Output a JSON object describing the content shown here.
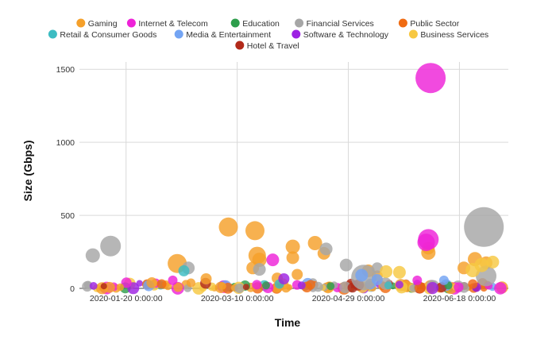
{
  "chart_data": {
    "type": "scatter",
    "xlabel": "Time",
    "ylabel": "Size (Gbps)",
    "ylim": [
      0,
      1550
    ],
    "y_ticks": [
      0,
      500,
      1000,
      1500
    ],
    "xlim": [
      "2019-12-30",
      "2020-07-10"
    ],
    "x_ticks": [
      "2020-01-20",
      "2020-03-10",
      "2020-04-29",
      "2020-06-18"
    ],
    "x_tick_labels": [
      "2020-01-20 0:00:00",
      "2020-03-10 0:00:00",
      "2020-04-29 0:00:00",
      "2020-06-18 0:00:00"
    ],
    "grid": true,
    "legend_position": "top",
    "series": [
      {
        "name": "Gaming",
        "color": "#f5a02a",
        "points": [
          {
            "x": "2020-02-12",
            "y": 170,
            "r": 12
          },
          {
            "x": "2020-03-06",
            "y": 420,
            "r": 12
          },
          {
            "x": "2020-03-18",
            "y": 395,
            "r": 12
          },
          {
            "x": "2020-03-19",
            "y": 225,
            "r": 11
          },
          {
            "x": "2020-03-20",
            "y": 195,
            "r": 9
          },
          {
            "x": "2020-03-17",
            "y": 140,
            "r": 8
          },
          {
            "x": "2020-04-04",
            "y": 285,
            "r": 9
          },
          {
            "x": "2020-04-04",
            "y": 210,
            "r": 8
          },
          {
            "x": "2020-04-06",
            "y": 95,
            "r": 7
          },
          {
            "x": "2020-04-14",
            "y": 310,
            "r": 9
          },
          {
            "x": "2020-04-18",
            "y": 240,
            "r": 8
          },
          {
            "x": "2020-05-08",
            "y": 120,
            "r": 8
          },
          {
            "x": "2020-05-12",
            "y": 85,
            "r": 7
          },
          {
            "x": "2020-06-04",
            "y": 245,
            "r": 9
          },
          {
            "x": "2020-06-04",
            "y": 275,
            "r": 8
          },
          {
            "x": "2020-06-20",
            "y": 140,
            "r": 8
          },
          {
            "x": "2020-06-25",
            "y": 200,
            "r": 9
          },
          {
            "x": "2020-06-30",
            "y": 175,
            "r": 8
          },
          {
            "x": "2020-02-25",
            "y": 65,
            "r": 7
          },
          {
            "x": "2020-03-28",
            "y": 70,
            "r": 7
          }
        ]
      },
      {
        "name": "Internet & Telecom",
        "color": "#ee22d8",
        "points": [
          {
            "x": "2020-06-05",
            "y": 1440,
            "r": 19
          },
          {
            "x": "2020-06-04",
            "y": 335,
            "r": 13
          },
          {
            "x": "2020-06-03",
            "y": 315,
            "r": 11
          },
          {
            "x": "2020-03-26",
            "y": 195,
            "r": 8
          },
          {
            "x": "2020-02-10",
            "y": 55,
            "r": 6
          },
          {
            "x": "2020-05-30",
            "y": 55,
            "r": 6
          }
        ]
      },
      {
        "name": "Education",
        "color": "#2e9e4c",
        "points": [
          {
            "x": "2020-03-23",
            "y": 20,
            "r": 5
          },
          {
            "x": "2020-04-21",
            "y": 15,
            "r": 5
          },
          {
            "x": "2020-06-13",
            "y": 20,
            "r": 5
          }
        ]
      },
      {
        "name": "Financial Services",
        "color": "#a6a6a6",
        "points": [
          {
            "x": "2020-01-05",
            "y": 225,
            "r": 9
          },
          {
            "x": "2020-01-13",
            "y": 290,
            "r": 13
          },
          {
            "x": "2020-02-17",
            "y": 140,
            "r": 8
          },
          {
            "x": "2020-03-20",
            "y": 130,
            "r": 8
          },
          {
            "x": "2020-04-19",
            "y": 270,
            "r": 8
          },
          {
            "x": "2020-04-28",
            "y": 160,
            "r": 8
          },
          {
            "x": "2020-05-06",
            "y": 75,
            "r": 16
          },
          {
            "x": "2020-05-12",
            "y": 140,
            "r": 7
          },
          {
            "x": "2020-06-29",
            "y": 420,
            "r": 25
          },
          {
            "x": "2020-06-30",
            "y": 85,
            "r": 13
          }
        ]
      },
      {
        "name": "Public Sector",
        "color": "#f06b12",
        "points": [
          {
            "x": "2020-02-05",
            "y": 30,
            "r": 6
          },
          {
            "x": "2020-04-12",
            "y": 25,
            "r": 6
          },
          {
            "x": "2020-06-24",
            "y": 30,
            "r": 6
          }
        ]
      },
      {
        "name": "Retail & Consumer Goods",
        "color": "#3cbcc2",
        "points": [
          {
            "x": "2020-02-15",
            "y": 120,
            "r": 7
          },
          {
            "x": "2020-03-29",
            "y": 30,
            "r": 6
          },
          {
            "x": "2020-05-17",
            "y": 20,
            "r": 5
          }
        ]
      },
      {
        "name": "Media & Entertainment",
        "color": "#73a4f3",
        "points": [
          {
            "x": "2020-05-05",
            "y": 90,
            "r": 8
          },
          {
            "x": "2020-05-12",
            "y": 60,
            "r": 7
          },
          {
            "x": "2020-06-11",
            "y": 55,
            "r": 6
          }
        ]
      },
      {
        "name": "Software & Technology",
        "color": "#9d22e3",
        "points": [
          {
            "x": "2020-03-31",
            "y": 65,
            "r": 7
          },
          {
            "x": "2020-04-08",
            "y": 20,
            "r": 5
          },
          {
            "x": "2020-05-22",
            "y": 25,
            "r": 5
          }
        ]
      },
      {
        "name": "Business Services",
        "color": "#f7c842",
        "points": [
          {
            "x": "2020-05-16",
            "y": 115,
            "r": 8
          },
          {
            "x": "2020-05-22",
            "y": 110,
            "r": 8
          },
          {
            "x": "2020-06-24",
            "y": 125,
            "r": 9
          },
          {
            "x": "2020-06-28",
            "y": 160,
            "r": 9
          },
          {
            "x": "2020-07-03",
            "y": 180,
            "r": 8
          }
        ]
      },
      {
        "name": "Hotel & Travel",
        "color": "#b22a1a",
        "points": [
          {
            "x": "2020-01-10",
            "y": 15,
            "r": 4
          },
          {
            "x": "2020-03-14",
            "y": 10,
            "r": 4
          }
        ]
      }
    ],
    "baseline_cluster": {
      "count": 160,
      "y_max": 40
    }
  }
}
